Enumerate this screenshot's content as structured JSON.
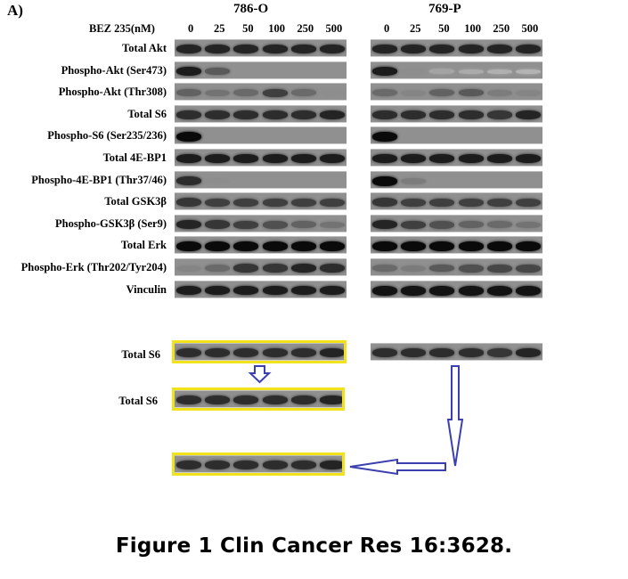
{
  "panel_label": "A)",
  "treatment_label": "BEZ 235(nM)",
  "doses": [
    "0",
    "25",
    "50",
    "100",
    "250",
    "500"
  ],
  "cell_lines": [
    {
      "name": "786-O"
    },
    {
      "name": "769-P"
    }
  ],
  "rows": [
    {
      "label": "Total Akt",
      "b786": [
        0.85,
        0.85,
        0.85,
        0.85,
        0.85,
        0.85
      ],
      "b769": [
        0.85,
        0.85,
        0.85,
        0.85,
        0.85,
        0.85
      ]
    },
    {
      "label": "Phospho-Akt (Ser473)",
      "b786": [
        0.9,
        0.55,
        0,
        0,
        0,
        0
      ],
      "b769": [
        0.9,
        0.25,
        0.12,
        0.08,
        0.05,
        0.03
      ]
    },
    {
      "label": "Phospho-Akt (Thr308)",
      "b786": [
        0.5,
        0.4,
        0.45,
        0.7,
        0.45,
        0.25
      ],
      "b769": [
        0.45,
        0.3,
        0.5,
        0.55,
        0.35,
        0.3
      ]
    },
    {
      "label": "Total S6",
      "b786": [
        0.8,
        0.8,
        0.8,
        0.8,
        0.8,
        0.85
      ],
      "b769": [
        0.8,
        0.8,
        0.8,
        0.8,
        0.75,
        0.85
      ]
    },
    {
      "label": "Phospho-S6 (Ser235/236)",
      "b786": [
        1.0,
        0,
        0,
        0,
        0,
        0
      ],
      "b769": [
        1.0,
        0,
        0,
        0,
        0,
        0
      ]
    },
    {
      "label": "Total 4E-BP1",
      "b786": [
        0.9,
        0.9,
        0.9,
        0.9,
        0.9,
        0.9
      ],
      "b769": [
        0.9,
        0.9,
        0.9,
        0.9,
        0.9,
        0.9
      ]
    },
    {
      "label": "Phospho-4E-BP1 (Thr37/46)",
      "b786": [
        0.8,
        0.25,
        0,
        0,
        0,
        0
      ],
      "b769": [
        1.0,
        0.35,
        0,
        0,
        0,
        0
      ]
    },
    {
      "label": "Total GSK3β",
      "b786": [
        0.75,
        0.7,
        0.7,
        0.7,
        0.7,
        0.7
      ],
      "b769": [
        0.75,
        0.7,
        0.7,
        0.7,
        0.7,
        0.7
      ]
    },
    {
      "label": "Phospho-GSK3β (Ser9)",
      "b786": [
        0.85,
        0.75,
        0.7,
        0.6,
        0.5,
        0.4
      ],
      "b769": [
        0.85,
        0.7,
        0.6,
        0.5,
        0.45,
        0.4
      ]
    },
    {
      "label": "Total Erk",
      "b786": [
        1.0,
        1.0,
        1.0,
        1.0,
        1.0,
        1.0
      ],
      "b769": [
        1.0,
        1.0,
        1.0,
        1.0,
        1.0,
        1.0
      ]
    },
    {
      "label": "Phospho-Erk (Thr202/Tyr204)",
      "b786": [
        0.3,
        0.45,
        0.75,
        0.75,
        0.85,
        0.8
      ],
      "b769": [
        0.45,
        0.35,
        0.55,
        0.6,
        0.65,
        0.65
      ]
    },
    {
      "label": "Vinculin",
      "b786": [
        0.9,
        0.9,
        0.9,
        0.9,
        0.9,
        0.9
      ],
      "b769": [
        0.95,
        0.95,
        0.95,
        0.95,
        0.95,
        0.95
      ]
    }
  ],
  "comparison": {
    "row1_label": "Total S6",
    "row2_label": "Total S6",
    "bands": [
      0.8,
      0.8,
      0.8,
      0.8,
      0.8,
      0.85
    ],
    "bands_769": [
      0.8,
      0.8,
      0.8,
      0.8,
      0.75,
      0.85
    ],
    "highlight_color": "#f2e21a",
    "arrow_color": "#3b3fb0"
  },
  "caption": "Figure 1 Clin Cancer Res 16:3628."
}
